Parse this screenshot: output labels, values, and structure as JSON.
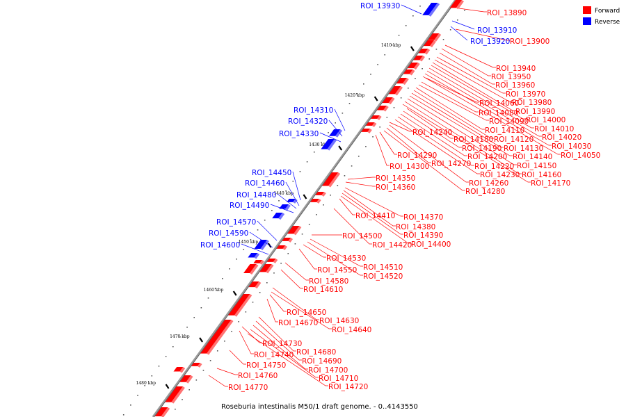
{
  "caption": "Roseburia intestinalis M50/1 draft genome. - 0..4143550",
  "legend": [
    {
      "label": "Forward",
      "color": "#ff0000"
    },
    {
      "label": "Reverse",
      "color": "#0000ff"
    }
  ],
  "colors": {
    "forward": "#ff0000",
    "reverse": "#0000ff",
    "backbone": "#808080"
  },
  "ticks": [
    "1410 kbp",
    "1420 kbp",
    "1430 kbp",
    "1440 kbp",
    "1450 kbp",
    "1460 kbp",
    "1470 kbp",
    "1480 kbp"
  ],
  "forward_labels": [
    "ROI_13890",
    "ROI_13900",
    "ROI_13940",
    "ROI_13950",
    "ROI_13960",
    "ROI_13970",
    "ROI_13980",
    "ROI_13990",
    "ROI_14000",
    "ROI_14010",
    "ROI_14020",
    "ROI_14030",
    "ROI_14050",
    "ROI_14060",
    "ROI_14080",
    "ROI_14090",
    "ROI_14110",
    "ROI_14120",
    "ROI_14130",
    "ROI_14140",
    "ROI_14150",
    "ROI_14160",
    "ROI_14170",
    "ROI_14180",
    "ROI_14190",
    "ROI_14200",
    "ROI_14220",
    "ROI_14230",
    "ROI_14240",
    "ROI_14260",
    "ROI_14270",
    "ROI_14280",
    "ROI_14290",
    "ROI_14300",
    "ROI_14350",
    "ROI_14360",
    "ROI_14370",
    "ROI_14380",
    "ROI_14390",
    "ROI_14400",
    "ROI_14410",
    "ROI_14420",
    "ROI_14500",
    "ROI_14510",
    "ROI_14520",
    "ROI_14530",
    "ROI_14550",
    "ROI_14580",
    "ROI_14610",
    "ROI_14630",
    "ROI_14640",
    "ROI_14650",
    "ROI_14670",
    "ROI_14680",
    "ROI_14690",
    "ROI_14700",
    "ROI_14710",
    "ROI_14720",
    "ROI_14730",
    "ROI_14740",
    "ROI_14750",
    "ROI_14760",
    "ROI_14770"
  ],
  "reverse_labels": [
    "ROI_13930",
    "ROI_13910",
    "ROI_13920",
    "ROI_14310",
    "ROI_14320",
    "ROI_14330",
    "ROI_14450",
    "ROI_14460",
    "ROI_14480",
    "ROI_14490",
    "ROI_14570",
    "ROI_14590",
    "ROI_14600"
  ]
}
